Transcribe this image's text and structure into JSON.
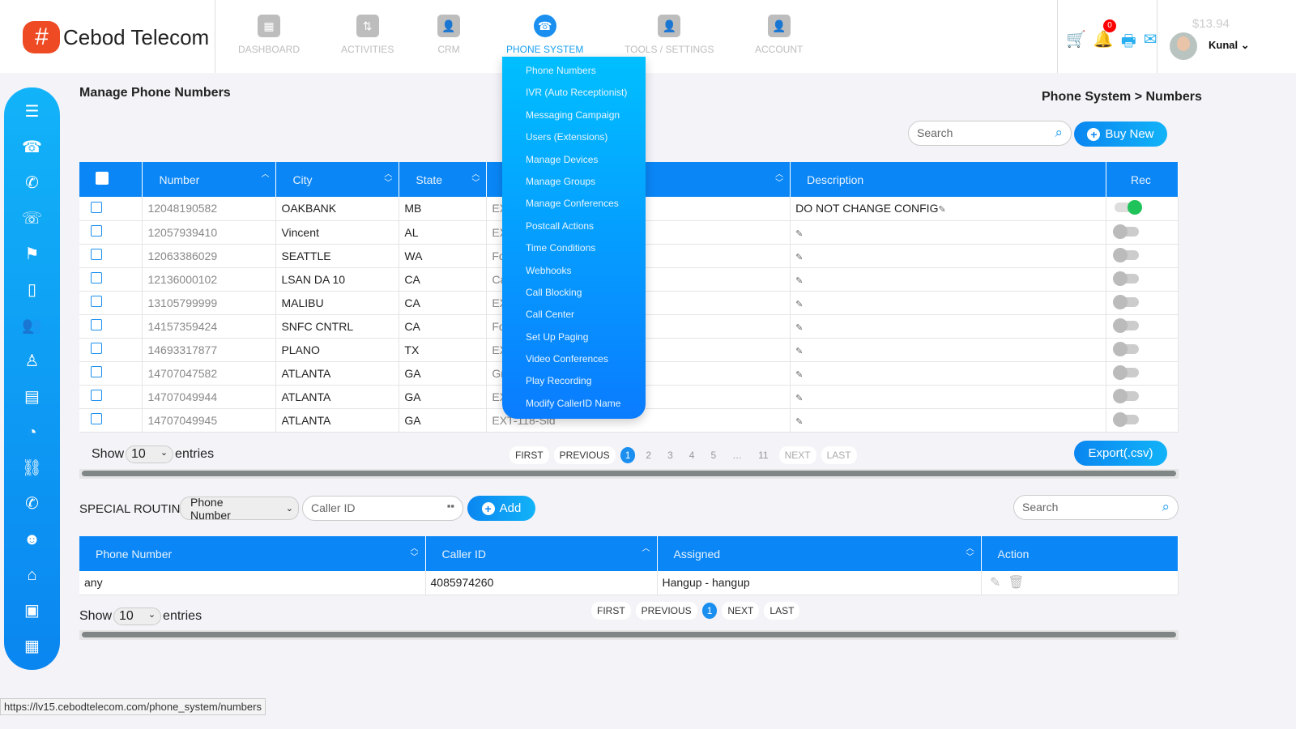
{
  "header": {
    "brand": "Cebod Telecom",
    "nav": [
      {
        "label": "DASHBOARD",
        "icon": "dashboard-icon"
      },
      {
        "label": "ACTIVITIES",
        "icon": "activities-icon"
      },
      {
        "label": "CRM",
        "icon": "crm-icon"
      },
      {
        "label": "PHONE SYSTEM",
        "icon": "phone-system-icon",
        "active": true
      },
      {
        "label": "TOOLS / SETTINGS",
        "icon": "tools-icon"
      },
      {
        "label": "ACCOUNT",
        "icon": "account-icon"
      }
    ],
    "notification_count": "0",
    "balance": "$13.94",
    "user": "Kunal"
  },
  "dropdown": [
    "Phone Numbers",
    "IVR (Auto Receptionist)",
    "Messaging Campaign",
    "Users (Extensions)",
    "Manage Devices",
    "Manage Groups",
    "Manage Conferences",
    "Postcall Actions",
    "Time Conditions",
    "Webhooks",
    "Call Blocking",
    "Call Center",
    "Set Up Paging",
    "Video Conferences",
    "Play Recording",
    "Modify CallerID Name"
  ],
  "page": {
    "title": "Manage Phone Numbers",
    "breadcrumb": "Phone System > Numbers",
    "search_placeholder": "Search",
    "buy_new": "Buy New"
  },
  "numbers_table": {
    "columns": [
      "Number",
      "City",
      "State",
      "",
      "Description",
      "Rec"
    ],
    "rows": [
      {
        "number": "12048190582",
        "city": "OAKBANK",
        "state": "MB",
        "hidden": "EX",
        "description": "DO NOT CHANGE CONFIG",
        "rec": true
      },
      {
        "number": "12057939410",
        "city": "Vincent",
        "state": "AL",
        "hidden": "EX",
        "description": "",
        "rec": false
      },
      {
        "number": "12063386029",
        "city": "SEATTLE",
        "state": "WA",
        "hidden": "Fo",
        "description": "",
        "rec": false
      },
      {
        "number": "12136000102",
        "city": "LSAN DA 10",
        "state": "CA",
        "hidden": "Ca",
        "description": "",
        "rec": false
      },
      {
        "number": "13105799999",
        "city": "MALIBU",
        "state": "CA",
        "hidden": "EX",
        "description": "",
        "rec": false
      },
      {
        "number": "14157359424",
        "city": "SNFC CNTRL",
        "state": "CA",
        "hidden": "Fo",
        "description": "",
        "rec": false
      },
      {
        "number": "14693317877",
        "city": "PLANO",
        "state": "TX",
        "hidden": "EX",
        "description": "",
        "rec": false
      },
      {
        "number": "14707047582",
        "city": "ATLANTA",
        "state": "GA",
        "hidden": "Gr",
        "description": "",
        "rec": false
      },
      {
        "number": "14707049944",
        "city": "ATLANTA",
        "state": "GA",
        "hidden": "EX",
        "description": "",
        "rec": false
      },
      {
        "number": "14707049945",
        "city": "ATLANTA",
        "state": "GA",
        "hidden": "EXT-118-Sid",
        "description": "",
        "rec": false
      }
    ],
    "show": "Show",
    "entries_value": "10",
    "entries": "entries",
    "pager": [
      "FIRST",
      "PREVIOUS",
      "1",
      "2",
      "3",
      "4",
      "5",
      "…",
      "11",
      "NEXT",
      "LAST"
    ],
    "export": "Export(.csv)"
  },
  "routing": {
    "label": "SPECIAL ROUTING",
    "type_select": "Phone Number",
    "caller_id_placeholder": "Caller ID",
    "add": "Add",
    "search_placeholder": "Search",
    "columns": [
      "Phone Number",
      "Caller ID",
      "Assigned",
      "Action"
    ],
    "rows": [
      {
        "phone": "any",
        "caller_id": "4085974260",
        "assigned": "Hangup - hangup"
      }
    ],
    "show": "Show",
    "entries_value": "10",
    "entries": "entries",
    "pager": [
      "FIRST",
      "PREVIOUS",
      "1",
      "NEXT",
      "LAST"
    ]
  },
  "status_url": "https://lv15.cebodtelecom.com/phone_system/numbers"
}
